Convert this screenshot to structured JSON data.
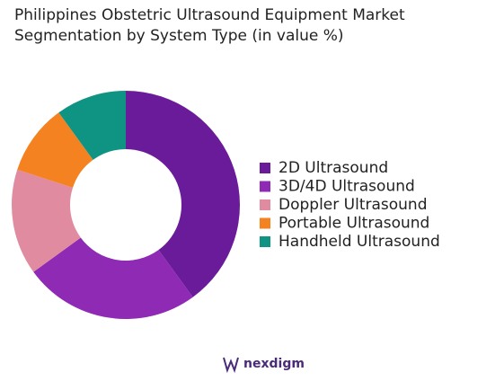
{
  "chart_data": {
    "type": "donut",
    "title": "Philippines Obstetric Ultrasound Equipment Market Segmentation by System Type (in value %)",
    "categories": [
      "2D Ultrasound",
      "3D/4D Ultrasound",
      "Doppler Ultrasound",
      "Portable Ultrasound",
      "Handheld Ultrasound"
    ],
    "values": [
      40,
      25,
      15,
      10,
      10
    ],
    "colors": [
      "#6a1b9a",
      "#8e2ab4",
      "#e08ba0",
      "#f58220",
      "#0f9484"
    ],
    "legend": "right"
  },
  "logo": "nexdigm"
}
